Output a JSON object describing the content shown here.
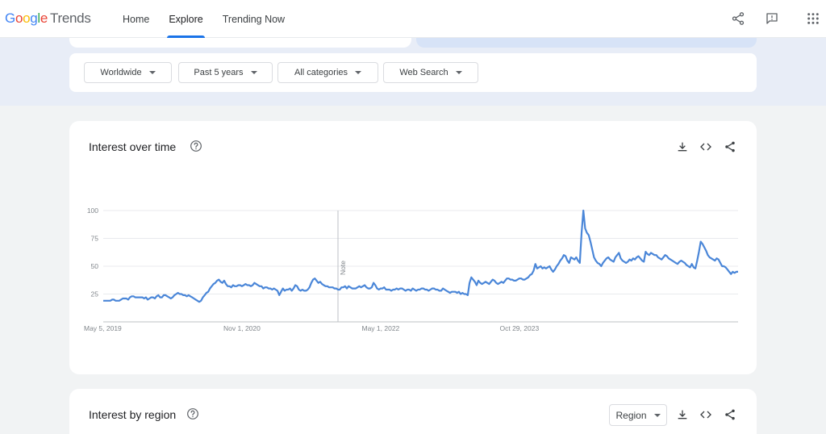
{
  "header": {
    "logo_google": "Google",
    "logo_trends": "Trends",
    "nav": [
      {
        "label": "Home",
        "active": false
      },
      {
        "label": "Explore",
        "active": true
      },
      {
        "label": "Trending Now",
        "active": false
      }
    ],
    "icons": [
      "share-icon",
      "feedback-icon",
      "apps-grid-icon"
    ]
  },
  "filters": [
    {
      "label": "Worldwide"
    },
    {
      "label": "Past 5 years"
    },
    {
      "label": "All categories"
    },
    {
      "label": "Web Search"
    }
  ],
  "interest_over_time": {
    "title": "Interest over time",
    "note_label": "Note",
    "tools": [
      "download-icon",
      "embed-icon",
      "share-icon"
    ]
  },
  "interest_by_region": {
    "title": "Interest by region",
    "region_select": "Region",
    "tools": [
      "download-icon",
      "embed-icon",
      "share-icon"
    ]
  },
  "colors": {
    "accent": "#1a73e8",
    "series": "#4a86d8",
    "grid": "#e8eaed"
  },
  "chart_data": {
    "type": "line",
    "title": "",
    "xlabel": "",
    "ylabel": "",
    "ylim": [
      0,
      100
    ],
    "y_ticks": [
      25,
      50,
      75,
      100
    ],
    "x_ticks": [
      "May 5, 2019",
      "Nov 1, 2020",
      "May 1, 2022",
      "Oct 29, 2023"
    ],
    "x_tick_indices": [
      0,
      78,
      156,
      234
    ],
    "note_index": 132,
    "grid": true,
    "legend": "none",
    "series": [
      {
        "values": [
          19,
          19,
          19,
          19,
          19,
          20,
          20,
          19,
          19,
          19,
          20,
          21,
          21,
          21,
          20,
          22,
          23,
          23,
          22,
          22,
          22,
          22,
          22,
          21,
          22,
          20,
          21,
          22,
          22,
          21,
          23,
          24,
          22,
          22,
          24,
          24,
          23,
          22,
          21,
          22,
          24,
          25,
          26,
          25,
          25,
          24,
          24,
          23,
          24,
          23,
          22,
          21,
          20,
          19,
          18,
          19,
          22,
          24,
          26,
          27,
          30,
          32,
          34,
          35,
          37,
          38,
          36,
          35,
          37,
          34,
          32,
          32,
          31,
          33,
          32,
          32,
          33,
          33,
          32,
          33,
          34,
          33,
          33,
          32,
          33,
          35,
          34,
          33,
          32,
          32,
          30,
          31,
          31,
          30,
          30,
          29,
          30,
          29,
          28,
          24,
          27,
          30,
          28,
          29,
          29,
          30,
          28,
          30,
          33,
          32,
          29,
          28,
          29,
          28,
          28,
          29,
          31,
          35,
          38,
          39,
          37,
          35,
          36,
          34,
          33,
          32,
          32,
          31,
          31,
          31,
          30,
          30,
          29,
          29,
          31,
          31,
          32,
          30,
          32,
          31,
          30,
          30,
          30,
          31,
          32,
          31,
          32,
          33,
          31,
          30,
          30,
          31,
          35,
          33,
          30,
          29,
          30,
          30,
          31,
          29,
          29,
          29,
          28,
          29,
          29,
          30,
          29,
          30,
          30,
          29,
          28,
          29,
          29,
          28,
          30,
          29,
          28,
          29,
          29,
          30,
          30,
          29,
          29,
          28,
          29,
          30,
          30,
          29,
          29,
          28,
          28,
          30,
          29,
          28,
          27,
          26,
          27,
          27,
          27,
          26,
          27,
          25,
          26,
          25,
          25,
          24,
          35,
          40,
          38,
          36,
          33,
          37,
          35,
          34,
          35,
          36,
          35,
          34,
          36,
          38,
          37,
          35,
          34,
          35,
          36,
          35,
          37,
          39,
          39,
          38,
          38,
          37,
          37,
          38,
          39,
          39,
          38,
          38,
          39,
          40,
          42,
          43,
          46,
          52,
          48,
          49,
          50,
          48,
          49,
          48,
          49,
          50,
          47,
          45,
          47,
          50,
          52,
          55,
          57,
          60,
          59,
          55,
          53,
          58,
          57,
          56,
          58,
          55,
          53,
          80,
          100,
          84,
          80,
          78,
          72,
          65,
          58,
          55,
          53,
          52,
          50,
          53,
          55,
          57,
          58,
          56,
          55,
          54,
          58,
          60,
          62,
          57,
          55,
          54,
          53,
          54,
          56,
          55,
          57,
          56,
          58,
          59,
          57,
          55,
          54,
          63,
          61,
          60,
          62,
          61,
          60,
          60,
          58,
          57,
          56,
          58,
          60,
          59,
          57,
          56,
          55,
          54,
          53,
          52,
          54,
          55,
          54,
          53,
          51,
          50,
          49,
          52,
          49,
          48,
          55,
          63,
          72,
          70,
          67,
          64,
          60,
          58,
          57,
          56,
          55,
          57,
          56,
          53,
          50,
          50,
          49,
          47,
          45,
          43,
          45,
          44,
          45,
          45
        ]
      }
    ]
  }
}
